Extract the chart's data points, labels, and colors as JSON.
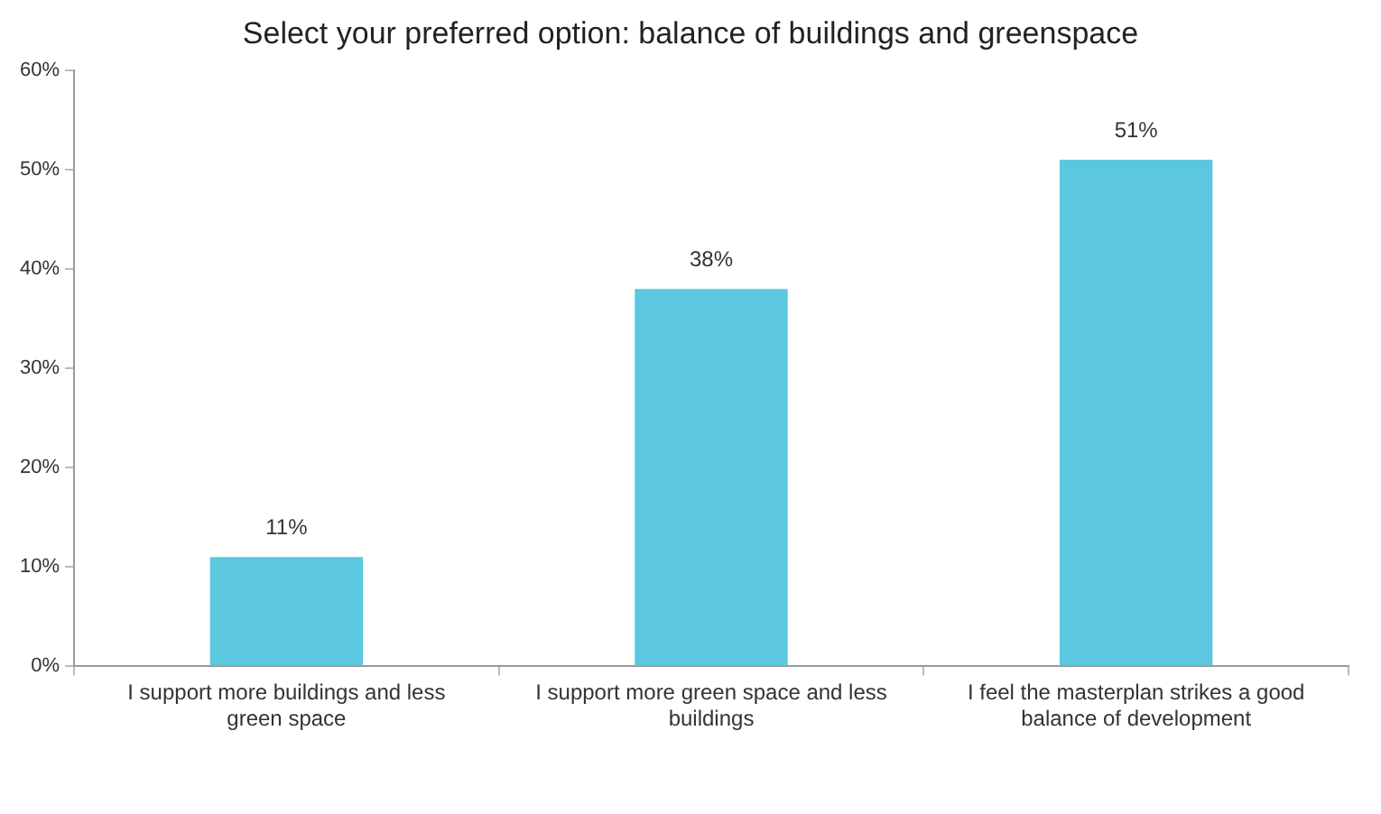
{
  "chart_data": {
    "type": "bar",
    "title": "Select your preferred option: balance of buildings and greenspace",
    "categories": [
      "I support more buildings and less green space",
      "I support more green space and less buildings",
      "I feel the masterplan strikes a good balance of development"
    ],
    "values": [
      11,
      38,
      51
    ],
    "color": "#5bc8e0",
    "value_labels": [
      "11%",
      "38%",
      "51%"
    ],
    "ylim": [
      0,
      60
    ],
    "yticks": [
      {
        "value": 0,
        "label": "0%"
      },
      {
        "value": 10,
        "label": "10%"
      },
      {
        "value": 20,
        "label": "20%"
      },
      {
        "value": 30,
        "label": "30%"
      },
      {
        "value": 40,
        "label": "40%"
      },
      {
        "value": 50,
        "label": "50%"
      },
      {
        "value": 60,
        "label": "60%"
      }
    ],
    "grid": false,
    "legend": false
  }
}
